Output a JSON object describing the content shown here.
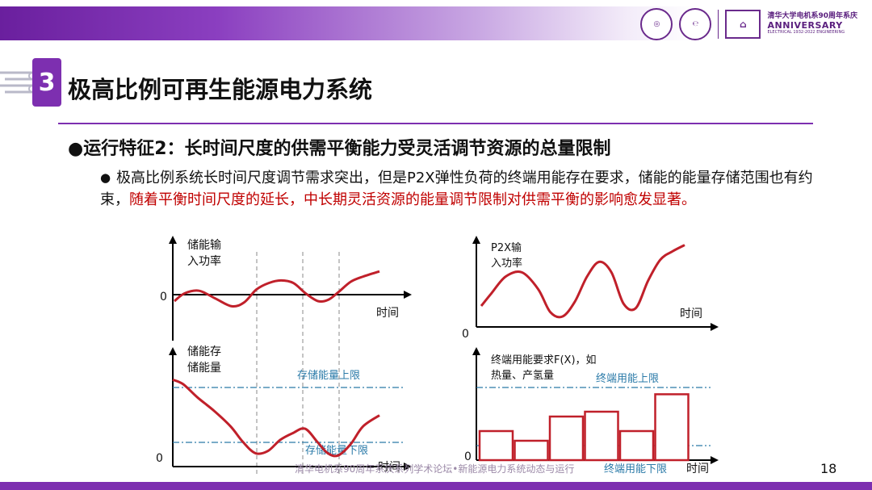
{
  "header": {
    "anniversary_line1": "清华大学电机系90周年系庆",
    "anniversary_line2": "ANNIVERSARY",
    "anniversary_line3": "ELECTRICAL 1932-2022 ENGINEERING"
  },
  "section": {
    "number": "3",
    "title": "极高比例可再生能源电力系统"
  },
  "content": {
    "subheading": "●运行特征2：长时间尺度的供需平衡能力受灵活调节资源的总量限制",
    "bullet_symbol": "●",
    "bullet_plain": "极高比例系统长时间尺度调节需求突出，但是P2X弹性负荷的终端用能存在要求，储能的能量存储范围也有约束，",
    "bullet_highlight": "随着平衡时间尺度的延长，中长期灵活资源的能量调节限制对供需平衡的影响愈发显著。"
  },
  "chart_data": [
    {
      "type": "line",
      "ylabel_line1": "储能输",
      "ylabel_line2": "入功率",
      "xlabel": "时间",
      "zero_label": "0",
      "x": [
        0,
        0.05,
        0.12,
        0.2,
        0.28,
        0.34,
        0.4,
        0.46,
        0.52,
        0.58,
        0.64,
        0.7,
        0.75,
        0.8,
        0.86,
        0.92,
        1.0
      ],
      "y": [
        -0.5,
        0.1,
        0.3,
        -0.3,
        -0.9,
        -0.6,
        0.4,
        0.9,
        1.1,
        0.9,
        0.1,
        -0.5,
        -0.4,
        0.2,
        1.0,
        1.4,
        1.8
      ]
    },
    {
      "type": "line",
      "ylabel_line1": "储能存",
      "ylabel_line2": "储能量",
      "xlabel": "时间",
      "zero_label": "0",
      "upper_limit_label": "存储能量上限",
      "lower_limit_label": "存储能量下限",
      "x": [
        0,
        0.05,
        0.12,
        0.2,
        0.28,
        0.34,
        0.4,
        0.46,
        0.52,
        0.58,
        0.64,
        0.7,
        0.75,
        0.8,
        0.86,
        0.92,
        1.0
      ],
      "y": [
        0.78,
        0.74,
        0.62,
        0.5,
        0.36,
        0.22,
        0.12,
        0.14,
        0.24,
        0.3,
        0.34,
        0.22,
        0.12,
        0.1,
        0.2,
        0.36,
        0.46
      ]
    },
    {
      "type": "line",
      "ylabel_line1": "P2X输",
      "ylabel_line2": "入功率",
      "xlabel": "时间",
      "zero_label": "0",
      "x": [
        0,
        0.05,
        0.12,
        0.2,
        0.28,
        0.34,
        0.4,
        0.46,
        0.52,
        0.58,
        0.64,
        0.7,
        0.76,
        0.82,
        0.88,
        0.94,
        1.0
      ],
      "y": [
        0.2,
        0.32,
        0.48,
        0.52,
        0.36,
        0.14,
        0.1,
        0.24,
        0.48,
        0.62,
        0.52,
        0.22,
        0.18,
        0.44,
        0.64,
        0.72,
        0.78
      ]
    },
    {
      "type": "bar",
      "ylabel_line1": "终端用能要求F(X)，如",
      "ylabel_line2": "热量、产氢量",
      "xlabel": "时间",
      "zero_label": "0",
      "upper_limit_label": "终端用能上限",
      "lower_limit_label": "终端用能下限",
      "values": [
        0.3,
        0.2,
        0.45,
        0.5,
        0.3,
        0.68
      ]
    }
  ],
  "footer": {
    "text": "清华电机系90周年系庆系列学术论坛•新能源电力系统动态与运行",
    "page_number": "18"
  },
  "colors": {
    "accent": "#7d2fb0",
    "curve": "#c0202a",
    "limit_line": "#2a7aa8"
  }
}
